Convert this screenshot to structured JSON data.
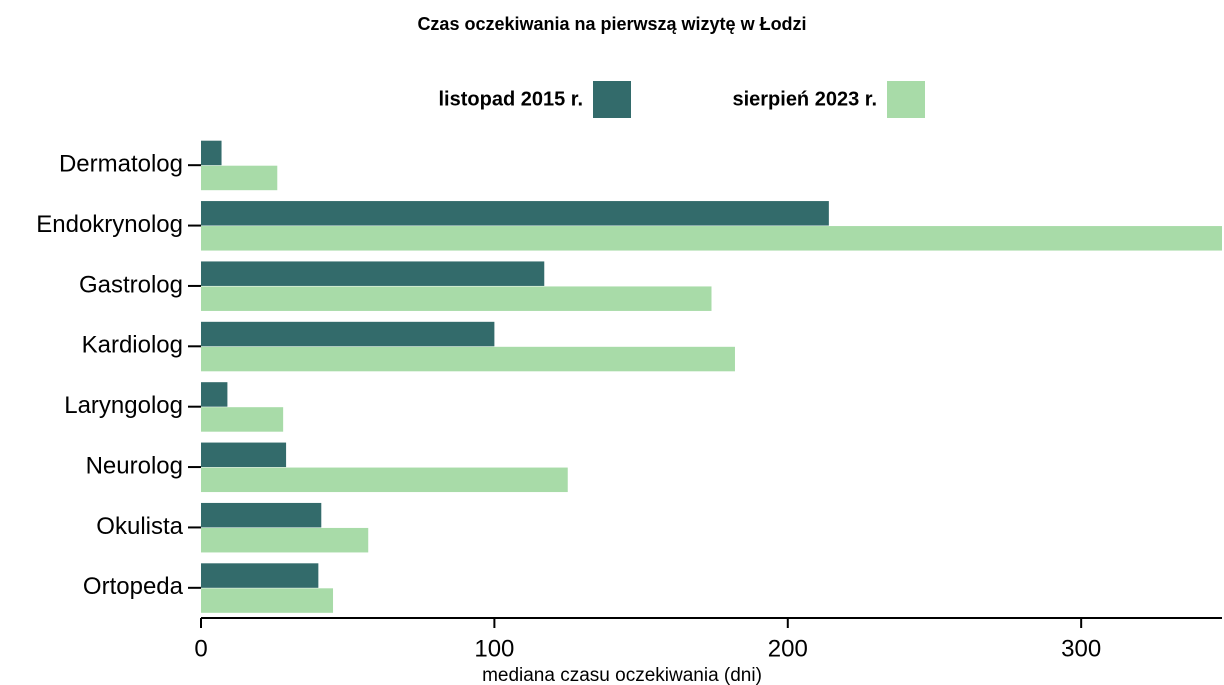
{
  "chart_data": {
    "type": "hbar",
    "title": "Czas oczekiwania na pierwszą wizytę w Łodzi",
    "xlabel": "mediana czasu oczekiwania (dni)",
    "categories": [
      "Dermatolog",
      "Endokrynolog",
      "Gastrolog",
      "Kardiolog",
      "Laryngolog",
      "Neurolog",
      "Okulista",
      "Ortopeda"
    ],
    "series": [
      {
        "name": "listopad 2015 r.",
        "color": "#336b6b",
        "values": [
          7,
          214,
          117,
          100,
          9,
          29,
          41,
          40
        ]
      },
      {
        "name": "sierpień 2023 r.",
        "color": "#a8dba8",
        "values": [
          26,
          348,
          174,
          182,
          28,
          125,
          57,
          45
        ]
      }
    ],
    "xlim": [
      0,
      348
    ],
    "xticks": [
      0,
      100,
      200,
      300
    ],
    "legend": "top"
  }
}
